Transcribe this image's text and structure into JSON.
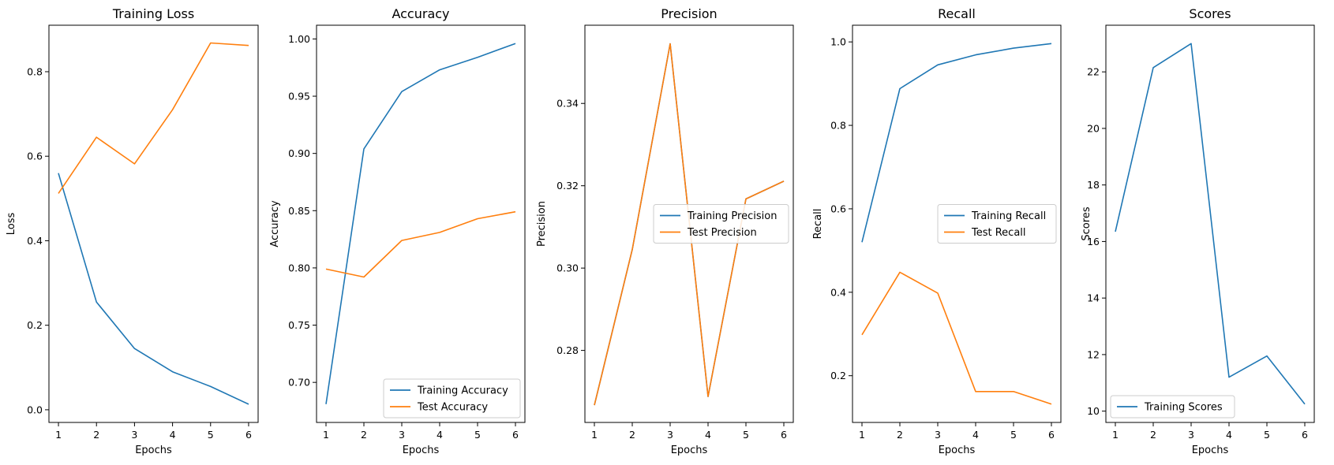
{
  "figure": {
    "colors": {
      "train": "#1f77b4",
      "test": "#ff7f0e"
    }
  },
  "chart_data": [
    {
      "type": "line",
      "title": "Training Loss",
      "xlabel": "Epochs",
      "ylabel": "Loss",
      "x": [
        1,
        2,
        3,
        4,
        5,
        6
      ],
      "xlim": [
        0.75,
        6.25
      ],
      "ylim": [
        -0.03,
        0.91
      ],
      "xticks": [
        1,
        2,
        3,
        4,
        5,
        6
      ],
      "yticks": [
        "0.0",
        "0.2",
        "0.4",
        "0.6",
        "0.8"
      ],
      "series": [
        {
          "color": "#1f77b4",
          "values": [
            0.56,
            0.255,
            0.145,
            0.09,
            0.055,
            0.013
          ]
        },
        {
          "color": "#ff7f0e",
          "values": [
            0.512,
            0.645,
            0.582,
            0.71,
            0.868,
            0.862
          ]
        }
      ],
      "legend": null
    },
    {
      "type": "line",
      "title": "Accuracy",
      "xlabel": "Epochs",
      "ylabel": "Accuracy",
      "x": [
        1,
        2,
        3,
        4,
        5,
        6
      ],
      "xlim": [
        0.75,
        6.25
      ],
      "ylim": [
        0.665,
        1.012
      ],
      "xticks": [
        1,
        2,
        3,
        4,
        5,
        6
      ],
      "yticks": [
        "0.70",
        "0.75",
        "0.80",
        "0.85",
        "0.90",
        "0.95",
        "1.00"
      ],
      "series": [
        {
          "name": "Training Accuracy",
          "color": "#1f77b4",
          "values": [
            0.681,
            0.904,
            0.954,
            0.973,
            0.984,
            0.996
          ]
        },
        {
          "name": "Test Accuracy",
          "color": "#ff7f0e",
          "values": [
            0.799,
            0.792,
            0.824,
            0.831,
            0.843,
            0.849
          ]
        }
      ],
      "legend": "lower-right"
    },
    {
      "type": "line",
      "title": "Precision",
      "xlabel": "Epochs",
      "ylabel": "Precision",
      "x": [
        1,
        2,
        3,
        4,
        5,
        6
      ],
      "xlim": [
        0.75,
        6.25
      ],
      "ylim": [
        0.2625,
        0.359
      ],
      "xticks": [
        1,
        2,
        3,
        4,
        5,
        6
      ],
      "yticks": [
        "0.28",
        "0.30",
        "0.32",
        "0.34"
      ],
      "series": [
        {
          "name": "Training Precision",
          "color": "#1f77b4",
          "values": [
            0.2667,
            0.3045,
            0.3545,
            0.2688,
            0.3168,
            0.3211
          ]
        },
        {
          "name": "Test Precision",
          "color": "#ff7f0e",
          "values": [
            0.2667,
            0.3045,
            0.3545,
            0.2688,
            0.3168,
            0.3211
          ]
        }
      ],
      "legend": "center-right"
    },
    {
      "type": "line",
      "title": "Recall",
      "xlabel": "Epochs",
      "ylabel": "Recall",
      "x": [
        1,
        2,
        3,
        4,
        5,
        6
      ],
      "xlim": [
        0.75,
        6.25
      ],
      "ylim": [
        0.088,
        1.04
      ],
      "xticks": [
        1,
        2,
        3,
        4,
        5,
        6
      ],
      "yticks": [
        "0.2",
        "0.4",
        "0.6",
        "0.8",
        "1.0"
      ],
      "series": [
        {
          "name": "Training Recall",
          "color": "#1f77b4",
          "values": [
            0.52,
            0.888,
            0.945,
            0.969,
            0.985,
            0.996
          ]
        },
        {
          "name": "Test Recall",
          "color": "#ff7f0e",
          "values": [
            0.298,
            0.448,
            0.398,
            0.162,
            0.162,
            0.132
          ]
        }
      ],
      "legend": "center-right"
    },
    {
      "type": "line",
      "title": "Scores",
      "xlabel": "Epochs",
      "ylabel": "Scores",
      "x": [
        1,
        2,
        3,
        4,
        5,
        6
      ],
      "xlim": [
        0.75,
        6.25
      ],
      "ylim": [
        9.6,
        23.65
      ],
      "xticks": [
        1,
        2,
        3,
        4,
        5,
        6
      ],
      "yticks": [
        "10",
        "12",
        "14",
        "16",
        "18",
        "20",
        "22"
      ],
      "series": [
        {
          "name": "Training Scores",
          "color": "#1f77b4",
          "values": [
            16.35,
            22.15,
            23.0,
            11.2,
            11.95,
            10.25
          ]
        }
      ],
      "legend": "lower-left"
    }
  ]
}
